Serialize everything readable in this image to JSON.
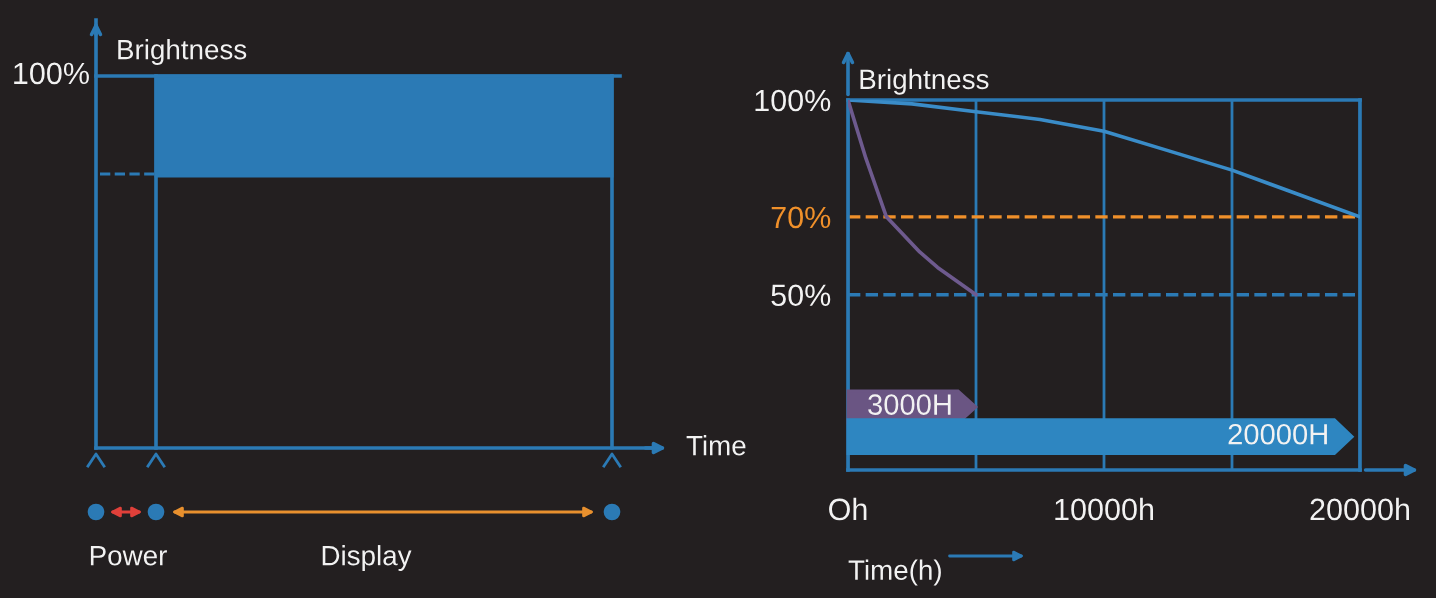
{
  "chart_data": [
    {
      "type": "other",
      "title": "Brightness",
      "xlabel": "Time",
      "annotations": [
        "100%",
        "Power",
        "Display"
      ]
    },
    {
      "type": "line",
      "title": "Brightness",
      "xlabel": "Time(h)",
      "series": [
        {
          "color": "#3a8cc8",
          "x": [
            0,
            2500,
            5000,
            7500,
            10000,
            12500,
            15000,
            17500,
            20000
          ],
          "values": [
            100,
            99,
            97,
            95,
            92,
            87,
            82,
            76,
            70
          ]
        },
        {
          "color": "#6e5a8e",
          "x": [
            0,
            700,
            1500,
            2800,
            3500,
            5000
          ],
          "values": [
            100,
            85,
            70,
            61,
            57,
            50
          ]
        }
      ],
      "xlim": [
        0,
        20000
      ],
      "xticks": [
        {
          "value": 0,
          "label": "Oh"
        },
        {
          "value": 5000,
          "label": null
        },
        {
          "value": 10000,
          "label": "10000h"
        },
        {
          "value": 15000,
          "label": null
        },
        {
          "value": 20000,
          "label": "20000h"
        }
      ],
      "ylim": [
        5,
        100
      ],
      "yticks": [
        {
          "value": 50,
          "label": "50%"
        },
        {
          "value": 70,
          "label": "70%"
        },
        {
          "value": 100,
          "label": "100%"
        }
      ],
      "grid": "x",
      "marker": "none",
      "line_style": "solid",
      "legend": false,
      "ref_lines": [
        {
          "axis": "y",
          "value": 70,
          "color": "#f0902a",
          "line_style": "dashed"
        },
        {
          "axis": "y",
          "value": 50,
          "color": "#2b7ab5",
          "line_style": "dashed"
        }
      ],
      "annotations": [
        "3000H",
        "20000H"
      ]
    }
  ]
}
